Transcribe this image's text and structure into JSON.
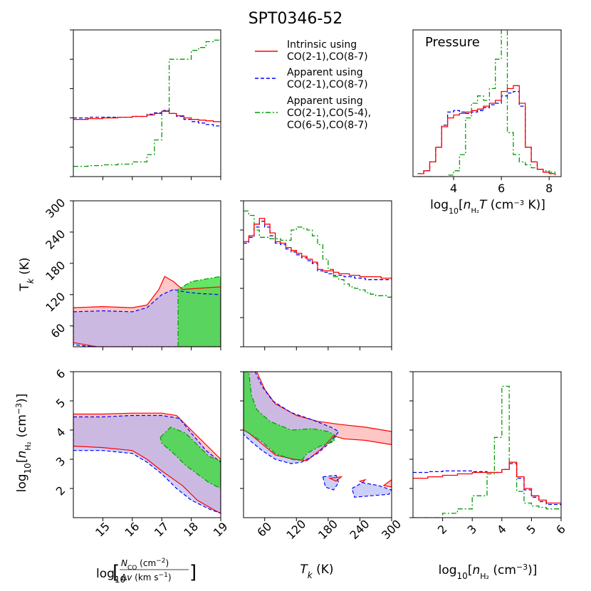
{
  "chart_data": {
    "type": "corner-plot",
    "title": "SPT0346-52",
    "colors": {
      "intrinsic": "#ff0000",
      "apparent2": "#0000ff",
      "apparent4": "#009900",
      "fill_intrinsic": "#ffb3b3",
      "fill_apparent2": "#aab0f5",
      "fill_apparent4": "#33dd33",
      "fill_overlap": "#a98ad6",
      "fill_dark": "#3a9a55"
    },
    "legend": {
      "placement": "top-center",
      "entries": [
        {
          "key": "intrinsic",
          "style": "solid",
          "lines": [
            "Intrinsic using",
            "CO(2-1),CO(8-7)"
          ]
        },
        {
          "key": "apparent2",
          "style": "dashed",
          "lines": [
            "Apparent using",
            "CO(2-1),CO(8-7)"
          ]
        },
        {
          "key": "apparent4",
          "style": "dashdot",
          "lines": [
            "Apparent using",
            "CO(2-1),CO(5-4),",
            "CO(6-5),CO(8-7)"
          ]
        }
      ]
    },
    "axes": {
      "x_N": {
        "label": "log10[NCO (cm^-2)/Δv (km s^-1)]",
        "range": [
          14.0,
          19.0
        ],
        "ticks": [
          15,
          16,
          17,
          18,
          19
        ],
        "ticklabels": [
          "15",
          "16",
          "17",
          "18",
          "19"
        ]
      },
      "x_T": {
        "label": "Tk (K)",
        "range": [
          20,
          300
        ],
        "ticks": [
          60,
          120,
          180,
          240,
          300
        ],
        "ticklabels": [
          "60",
          "120",
          "180",
          "240",
          "300"
        ]
      },
      "x_n": {
        "label": "log10[nH2 (cm^-3)]",
        "range": [
          1.0,
          6.0
        ],
        "ticks": [
          2,
          3,
          4,
          5,
          6
        ],
        "ticklabels": [
          "2",
          "3",
          "4",
          "5",
          "6"
        ]
      },
      "y_T": {
        "label": "Tk (K)",
        "range": [
          20,
          300
        ],
        "ticks": [
          60,
          120,
          180,
          240,
          300
        ],
        "ticklabels": [
          "60",
          "120",
          "180",
          "240",
          "300"
        ]
      },
      "y_n": {
        "label": "log10[nH2 (cm^-3)]",
        "range": [
          1.0,
          6.0
        ],
        "ticks": [
          2,
          3,
          4,
          5,
          6
        ],
        "ticklabels": [
          "2",
          "3",
          "4",
          "5",
          "6"
        ]
      },
      "x_P": {
        "label": "log10[nH2 T (cm^-3 K)]",
        "range": [
          2.3,
          8.5
        ],
        "ticks": [
          4,
          6,
          8
        ],
        "ticklabels": [
          "4",
          "6",
          "8"
        ]
      }
    },
    "pressure_label": "Pressure",
    "histograms": {
      "N": {
        "x": [
          14.0,
          14.5,
          15.0,
          15.5,
          16.0,
          16.5,
          16.75,
          17.0,
          17.25,
          17.5,
          17.75,
          18.0,
          18.25,
          18.5,
          18.75,
          19.0
        ],
        "intrinsic": [
          0.39,
          0.395,
          0.4,
          0.405,
          0.41,
          0.42,
          0.43,
          0.445,
          0.43,
          0.415,
          0.4,
          0.39,
          0.385,
          0.38,
          0.375,
          0.37
        ],
        "apparent2": [
          0.4,
          0.405,
          0.405,
          0.405,
          0.41,
          0.425,
          0.435,
          0.45,
          0.43,
          0.41,
          0.39,
          0.375,
          0.365,
          0.355,
          0.345,
          0.335
        ],
        "apparent4": [
          0.07,
          0.075,
          0.08,
          0.085,
          0.1,
          0.15,
          0.25,
          0.45,
          0.8,
          0.8,
          0.8,
          0.86,
          0.88,
          0.92,
          0.93,
          0.96
        ]
      },
      "T": {
        "x": [
          20,
          30,
          40,
          50,
          60,
          70,
          80,
          90,
          100,
          110,
          120,
          130,
          140,
          150,
          160,
          170,
          180,
          190,
          200,
          210,
          220,
          230,
          240,
          250,
          260,
          270,
          280,
          290,
          300
        ],
        "intrinsic": [
          0.72,
          0.76,
          0.84,
          0.88,
          0.84,
          0.78,
          0.72,
          0.71,
          0.68,
          0.66,
          0.64,
          0.62,
          0.6,
          0.58,
          0.53,
          0.52,
          0.52,
          0.51,
          0.5,
          0.5,
          0.49,
          0.49,
          0.48,
          0.48,
          0.48,
          0.48,
          0.47,
          0.47,
          0.47
        ],
        "apparent2": [
          0.71,
          0.75,
          0.82,
          0.86,
          0.82,
          0.76,
          0.71,
          0.7,
          0.67,
          0.65,
          0.63,
          0.61,
          0.59,
          0.57,
          0.52,
          0.51,
          0.5,
          0.49,
          0.49,
          0.48,
          0.48,
          0.47,
          0.47,
          0.46,
          0.46,
          0.46,
          0.46,
          0.46,
          0.46
        ],
        "apparent4": [
          0.93,
          0.9,
          0.8,
          0.75,
          0.75,
          0.74,
          0.74,
          0.73,
          0.73,
          0.8,
          0.82,
          0.81,
          0.8,
          0.76,
          0.7,
          0.6,
          0.53,
          0.48,
          0.46,
          0.43,
          0.41,
          0.4,
          0.39,
          0.37,
          0.36,
          0.35,
          0.35,
          0.34,
          0.34
        ]
      },
      "n": {
        "x": [
          1.0,
          1.5,
          2.0,
          2.5,
          3.0,
          3.5,
          3.75,
          4.0,
          4.25,
          4.5,
          4.75,
          5.0,
          5.25,
          5.5,
          6.0
        ],
        "intrinsic": [
          0.27,
          0.28,
          0.29,
          0.3,
          0.31,
          0.31,
          0.31,
          0.33,
          0.38,
          0.28,
          0.2,
          0.15,
          0.12,
          0.1,
          0.09
        ],
        "apparent2": [
          0.31,
          0.315,
          0.32,
          0.32,
          0.315,
          0.31,
          0.31,
          0.33,
          0.37,
          0.27,
          0.19,
          0.14,
          0.11,
          0.09,
          0.08
        ],
        "apparent4": [
          0.0,
          0.0,
          0.03,
          0.06,
          0.15,
          0.3,
          0.55,
          0.9,
          0.38,
          0.18,
          0.1,
          0.08,
          0.07,
          0.06,
          0.06
        ]
      },
      "P": {
        "x": [
          2.5,
          2.75,
          3.0,
          3.25,
          3.5,
          3.75,
          4.0,
          4.25,
          4.5,
          4.75,
          5.0,
          5.25,
          5.5,
          5.75,
          6.0,
          6.25,
          6.5,
          6.75,
          7.0,
          7.25,
          7.5,
          7.75,
          8.0,
          8.25
        ],
        "intrinsic": [
          0.02,
          0.04,
          0.1,
          0.2,
          0.34,
          0.4,
          0.42,
          0.43,
          0.44,
          0.45,
          0.46,
          0.48,
          0.5,
          0.52,
          0.58,
          0.6,
          0.62,
          0.5,
          0.2,
          0.1,
          0.05,
          0.03,
          0.02,
          0.01
        ],
        "apparent2": [
          0.02,
          0.04,
          0.1,
          0.2,
          0.35,
          0.44,
          0.45,
          0.44,
          0.43,
          0.44,
          0.45,
          0.47,
          0.49,
          0.5,
          0.55,
          0.57,
          0.58,
          0.48,
          0.2,
          0.1,
          0.05,
          0.03,
          0.02,
          0.01
        ],
        "apparent4": [
          0.0,
          0.0,
          0.0,
          0.0,
          0.0,
          0.01,
          0.04,
          0.15,
          0.4,
          0.5,
          0.55,
          0.52,
          0.6,
          0.8,
          1.0,
          0.3,
          0.15,
          0.1,
          0.08,
          0.06,
          0.05,
          0.04,
          0.03,
          0.02
        ]
      }
    },
    "contours": {
      "NT": {
        "intrinsic": [
          [
            [
              14.0,
              95
            ],
            [
              15.0,
              97
            ],
            [
              16.0,
              95
            ],
            [
              16.5,
              100
            ],
            [
              16.9,
              130
            ],
            [
              17.1,
              155
            ],
            [
              17.4,
              145
            ],
            [
              17.7,
              130
            ],
            [
              18.2,
              132
            ],
            [
              19.0,
              135
            ],
            [
              19.0,
              20
            ],
            [
              17.5,
              20
            ],
            [
              16.5,
              20
            ],
            [
              14.8,
              20
            ],
            [
              14.3,
              25
            ],
            [
              14.0,
              28
            ]
          ]
        ],
        "apparent2": [
          [
            [
              14.0,
              87
            ],
            [
              15.0,
              89
            ],
            [
              16.0,
              87
            ],
            [
              16.5,
              95
            ],
            [
              17.0,
              120
            ],
            [
              17.4,
              130
            ],
            [
              17.8,
              125
            ],
            [
              18.3,
              122
            ],
            [
              19.0,
              120
            ],
            [
              19.0,
              20
            ],
            [
              14.8,
              20
            ],
            [
              14.3,
              22
            ],
            [
              14.0,
              24
            ]
          ]
        ],
        "apparent4": [
          [
            [
              17.55,
              20
            ],
            [
              17.55,
              130
            ],
            [
              18.0,
              145
            ],
            [
              18.5,
              150
            ],
            [
              19.0,
              155
            ],
            [
              19.0,
              20
            ]
          ]
        ]
      },
      "Nn": {
        "intrinsic": [
          [
            [
              14.0,
              4.55
            ],
            [
              15.0,
              4.55
            ],
            [
              16.0,
              4.58
            ],
            [
              17.0,
              4.58
            ],
            [
              17.5,
              4.5
            ],
            [
              18.0,
              4.0
            ],
            [
              18.5,
              3.5
            ],
            [
              19.0,
              3.0
            ],
            [
              19.0,
              1.15
            ],
            [
              18.8,
              1.25
            ],
            [
              18.2,
              1.6
            ],
            [
              17.7,
              2.1
            ],
            [
              17.0,
              2.6
            ],
            [
              16.5,
              3.0
            ],
            [
              16.0,
              3.3
            ],
            [
              15.0,
              3.4
            ],
            [
              14.0,
              3.45
            ]
          ]
        ],
        "apparent2": [
          [
            [
              14.0,
              4.45
            ],
            [
              15.0,
              4.45
            ],
            [
              16.0,
              4.5
            ],
            [
              17.0,
              4.5
            ],
            [
              17.6,
              4.4
            ],
            [
              18.0,
              3.9
            ],
            [
              18.5,
              3.3
            ],
            [
              19.0,
              2.9
            ],
            [
              19.0,
              1.15
            ],
            [
              18.6,
              1.3
            ],
            [
              18.0,
              1.6
            ],
            [
              17.5,
              2.0
            ],
            [
              17.0,
              2.5
            ],
            [
              16.5,
              2.9
            ],
            [
              16.0,
              3.2
            ],
            [
              15.0,
              3.3
            ],
            [
              14.0,
              3.3
            ]
          ]
        ],
        "apparent4": [
          [
            [
              16.95,
              3.75
            ],
            [
              17.3,
              4.1
            ],
            [
              17.8,
              3.9
            ],
            [
              18.2,
              3.5
            ],
            [
              18.6,
              3.1
            ],
            [
              19.0,
              2.95
            ],
            [
              19.0,
              2.0
            ],
            [
              18.6,
              2.2
            ],
            [
              18.2,
              2.5
            ],
            [
              17.8,
              2.8
            ],
            [
              17.4,
              3.2
            ],
            [
              17.0,
              3.55
            ]
          ]
        ]
      },
      "Tn": {
        "intrinsic": [
          [
            [
              20,
              6.0
            ],
            [
              45,
              6.0
            ],
            [
              60,
              5.4
            ],
            [
              80,
              4.9
            ],
            [
              120,
              4.5
            ],
            [
              160,
              4.3
            ],
            [
              200,
              4.2
            ],
            [
              250,
              4.1
            ],
            [
              300,
              3.95
            ],
            [
              300,
              3.5
            ],
            [
              250,
              3.65
            ],
            [
              210,
              3.7
            ],
            [
              190,
              3.8
            ],
            [
              170,
              3.4
            ],
            [
              140,
              2.95
            ],
            [
              115,
              3.0
            ],
            [
              80,
              3.15
            ],
            [
              50,
              3.6
            ],
            [
              30,
              3.9
            ],
            [
              20,
              4.0
            ]
          ],
          [
            [
              183,
              2.35
            ],
            [
              205,
              2.4
            ],
            [
              195,
              2.25
            ]
          ],
          [
            [
              240,
              2.25
            ],
            [
              250,
              2.3
            ],
            [
              245,
              2.2
            ]
          ],
          [
            [
              285,
              2.1
            ],
            [
              300,
              2.3
            ],
            [
              300,
              2.05
            ]
          ]
        ],
        "apparent2": [
          [
            [
              20,
              6.0
            ],
            [
              42,
              6.0
            ],
            [
              55,
              5.5
            ],
            [
              75,
              5.0
            ],
            [
              110,
              4.6
            ],
            [
              150,
              4.35
            ],
            [
              185,
              4.1
            ],
            [
              200,
              3.95
            ],
            [
              185,
              3.6
            ],
            [
              160,
              3.2
            ],
            [
              130,
              2.9
            ],
            [
              110,
              2.85
            ],
            [
              80,
              3.0
            ],
            [
              55,
              3.3
            ],
            [
              35,
              3.6
            ],
            [
              20,
              3.85
            ]
          ],
          [
            [
              170,
              2.4
            ],
            [
              195,
              2.45
            ],
            [
              200,
              2.2
            ],
            [
              190,
              1.95
            ],
            [
              175,
              2.05
            ]
          ],
          [
            [
              225,
              2.0
            ],
            [
              245,
              2.2
            ],
            [
              275,
              2.1
            ],
            [
              300,
              1.95
            ],
            [
              295,
              1.8
            ],
            [
              260,
              1.75
            ],
            [
              230,
              1.7
            ]
          ]
        ],
        "apparent4": [
          [
            [
              20,
              6.0
            ],
            [
              30,
              6.0
            ],
            [
              35,
              5.2
            ],
            [
              45,
              4.7
            ],
            [
              70,
              4.3
            ],
            [
              110,
              4.0
            ],
            [
              150,
              4.05
            ],
            [
              180,
              3.95
            ],
            [
              195,
              3.8
            ],
            [
              190,
              3.6
            ],
            [
              165,
              3.45
            ],
            [
              140,
              3.2
            ],
            [
              130,
              2.95
            ],
            [
              110,
              3.0
            ],
            [
              80,
              3.2
            ],
            [
              55,
              3.6
            ],
            [
              30,
              3.9
            ],
            [
              20,
              4.0
            ]
          ]
        ]
      }
    }
  }
}
